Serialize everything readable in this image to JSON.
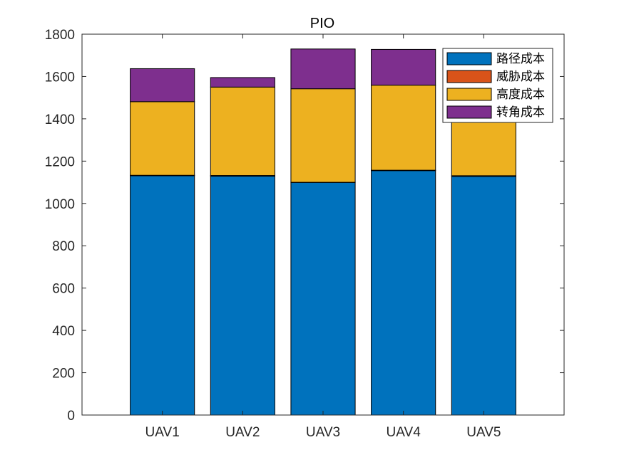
{
  "chart_data": {
    "type": "bar",
    "stacked": true,
    "title": "PIO",
    "xlabel": "",
    "ylabel": "",
    "categories": [
      "UAV1",
      "UAV2",
      "UAV3",
      "UAV4",
      "UAV5"
    ],
    "xlim": [
      0,
      6
    ],
    "ylim": [
      0,
      1800
    ],
    "yticks": [
      "0",
      "200",
      "400",
      "600",
      "800",
      "1000",
      "1200",
      "1400",
      "1600",
      "1800"
    ],
    "grid": false,
    "legend_position": "top-right",
    "series": [
      {
        "name": "路径成本",
        "color": "#0072BD",
        "values": [
          1131,
          1129,
          1099,
          1155,
          1128
        ]
      },
      {
        "name": "威胁成本",
        "color": "#D95319",
        "values": [
          2,
          3,
          1,
          2,
          3
        ]
      },
      {
        "name": "高度成本",
        "color": "#EDB120",
        "values": [
          348,
          418,
          442,
          402,
          390
        ]
      },
      {
        "name": "转角成本",
        "color": "#7E2F8E",
        "values": [
          156,
          45,
          188,
          169,
          28
        ]
      }
    ]
  }
}
